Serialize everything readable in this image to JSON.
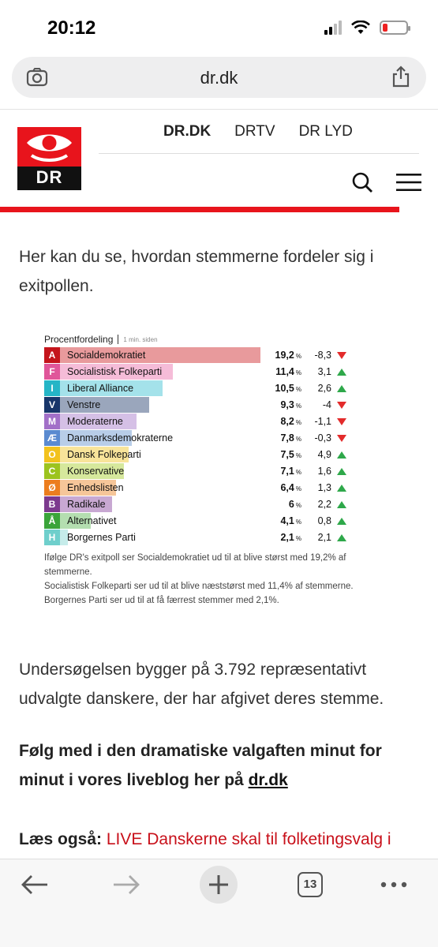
{
  "status": {
    "time": "20:12"
  },
  "browser": {
    "url": "dr.dk",
    "tab_count": "13"
  },
  "site": {
    "logo_text": "DR",
    "nav": [
      "DR.DK",
      "DRTV",
      "DR LYD"
    ],
    "brand_color": "#e8141c"
  },
  "article": {
    "intro": "Her kan du se, hvordan stemmerne fordeler sig i exitpollen.",
    "survey": "Undersøgelsen bygger på 3.792 repræsentativt udvalgte danskere, der har afgivet deres stemme.",
    "follow": "Følg med i den dramatiske valgaften minut for minut i vores liveblog her på ",
    "follow_link": "dr.dk",
    "read_also_label": "Læs også:",
    "read_also_link": "LIVE Danskerne skal til folketingsvalg i dag"
  },
  "chart": {
    "title": "Procentfordeling",
    "updated": "1 min. siden",
    "pct_unit": "%",
    "captions": [
      "Ifølge DR's exitpoll ser Socialdemokratiet ud til at blive størst med 19,2% af stemmerne.",
      "Socialistisk Folkeparti ser ud til at blive næststørst med 11,4% af stemmerne.",
      "Borgernes Parti ser ud til at få færrest stemmer med 2,1%."
    ]
  },
  "chart_data": {
    "type": "bar",
    "title": "Procentfordeling",
    "x_max": 19.2,
    "rows": [
      {
        "letter": "A",
        "name": "Socialdemokratiet",
        "pct": "19,2",
        "value": 19.2,
        "change": "-8,3",
        "dir": "down",
        "color": "#c4151c",
        "light": "#e89a9c"
      },
      {
        "letter": "F",
        "name": "Socialistisk Folkeparti",
        "pct": "11,4",
        "value": 11.4,
        "change": "3,1",
        "dir": "up",
        "color": "#e0569a",
        "light": "#f5bcd8"
      },
      {
        "letter": "I",
        "name": "Liberal Alliance",
        "pct": "10,5",
        "value": 10.5,
        "change": "2,6",
        "dir": "up",
        "color": "#25b5c6",
        "light": "#a4e2ea"
      },
      {
        "letter": "V",
        "name": "Venstre",
        "pct": "9,3",
        "value": 9.3,
        "change": "-4",
        "dir": "down",
        "color": "#18366a",
        "light": "#9aa6bc"
      },
      {
        "letter": "M",
        "name": "Moderaterne",
        "pct": "8,2",
        "value": 8.2,
        "change": "-1,1",
        "dir": "down",
        "color": "#a270c8",
        "light": "#d5c0e6"
      },
      {
        "letter": "Æ",
        "name": "Danmarksdemokraterne",
        "pct": "7,8",
        "value": 7.8,
        "change": "-0,3",
        "dir": "down",
        "color": "#5a8ad0",
        "light": "#b8cde8"
      },
      {
        "letter": "O",
        "name": "Dansk Folkeparti",
        "pct": "7,5",
        "value": 7.5,
        "change": "4,9",
        "dir": "up",
        "color": "#f2c21d",
        "light": "#f8e49a"
      },
      {
        "letter": "C",
        "name": "Konservative",
        "pct": "7,1",
        "value": 7.1,
        "change": "1,6",
        "dir": "up",
        "color": "#9cc31e",
        "light": "#d6e89c"
      },
      {
        "letter": "Ø",
        "name": "Enhedslisten",
        "pct": "6,4",
        "value": 6.4,
        "change": "1,3",
        "dir": "up",
        "color": "#ec7d1e",
        "light": "#f6c699"
      },
      {
        "letter": "B",
        "name": "Radikale",
        "pct": "6",
        "value": 6.0,
        "change": "2,2",
        "dir": "up",
        "color": "#7c3a8e",
        "light": "#c8a8d2"
      },
      {
        "letter": "Å",
        "name": "Alternativet",
        "pct": "4,1",
        "value": 4.1,
        "change": "0,8",
        "dir": "up",
        "color": "#3aa43a",
        "light": "#b4deb0"
      },
      {
        "letter": "H",
        "name": "Borgernes Parti",
        "pct": "2,1",
        "value": 2.1,
        "change": "2,1",
        "dir": "up",
        "color": "#6fcfcc",
        "light": "#c6ecea"
      }
    ]
  }
}
